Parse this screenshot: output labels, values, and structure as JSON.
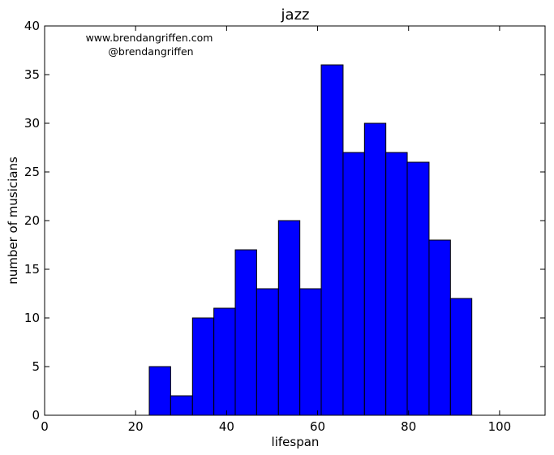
{
  "chart_data": {
    "type": "bar",
    "title": "jazz",
    "xlabel": "lifespan",
    "ylabel": "number of musicians",
    "xlim": [
      0,
      110
    ],
    "ylim": [
      0,
      40
    ],
    "xticks": [
      0,
      20,
      40,
      60,
      80,
      100
    ],
    "xtick_labels": [
      "0",
      "20",
      "40",
      "60",
      "80",
      "100"
    ],
    "yticks": [
      0,
      5,
      10,
      15,
      20,
      25,
      30,
      35,
      40
    ],
    "ytick_labels": [
      "0",
      "5",
      "10",
      "15",
      "20",
      "25",
      "30",
      "35",
      "40"
    ],
    "bin_edges": [
      23.0,
      27.7,
      32.5,
      37.2,
      41.9,
      46.6,
      51.4,
      56.1,
      60.8,
      65.6,
      70.3,
      75.0,
      79.7,
      84.5,
      89.2,
      93.9
    ],
    "values": [
      5,
      2,
      10,
      11,
      17,
      13,
      20,
      13,
      36,
      27,
      30,
      27,
      26,
      18,
      12
    ],
    "bar_color": "#0000ff",
    "edge_color": "#000000",
    "grid": false,
    "annotations": [
      "www.brendangriffen.com",
      "@brendangriffen"
    ]
  }
}
